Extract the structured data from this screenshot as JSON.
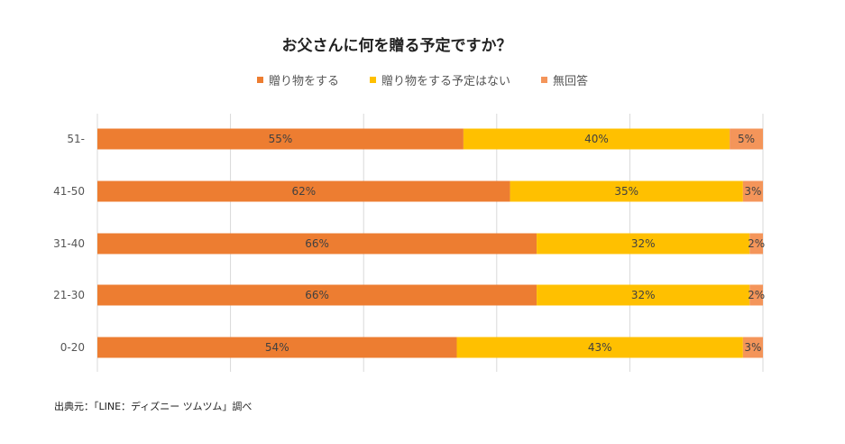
{
  "chart_data": {
    "type": "bar",
    "orientation": "horizontal",
    "stacked": true,
    "title": "お父さんに何を贈る予定ですか？",
    "categories": [
      "51-",
      "41-50",
      "31-40",
      "21-30",
      "0-20"
    ],
    "series": [
      {
        "name": "贈り物をする",
        "values": [
          55,
          62,
          66,
          66,
          54
        ],
        "color": "#ED7D31"
      },
      {
        "name": "贈り物をする予定はない",
        "values": [
          40,
          35,
          32,
          32,
          43
        ],
        "color": "#FFC000"
      },
      {
        "name": "無回答",
        "values": [
          5,
          3,
          2,
          2,
          3
        ],
        "color": "#F4955A"
      }
    ],
    "xlim": [
      0,
      100
    ],
    "value_suffix": "%",
    "grid": true,
    "legend_position": "top"
  },
  "source": "出典元：「LINE：ディズニー ツムツム」調べ"
}
